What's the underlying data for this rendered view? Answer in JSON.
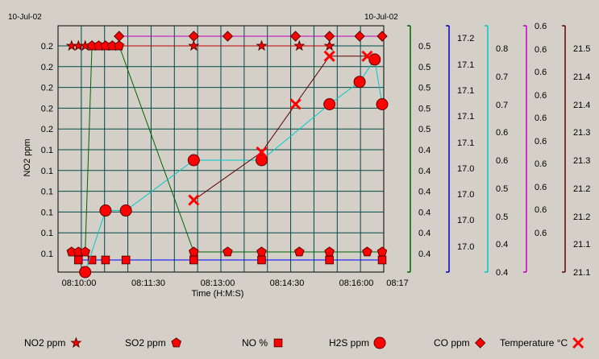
{
  "header": {
    "date_left": "10-Jul-02",
    "date_right": "10-Jul-02"
  },
  "chart_data": {
    "type": "line",
    "xlabel": "Time (H:M:S)",
    "ylabel": "NO2 ppm",
    "x_ticks": [
      "08:10:00",
      "08:11:30",
      "08:13:00",
      "08:14:30",
      "08:16:00",
      "08:17"
    ],
    "x_range_seconds": [
      0,
      432
    ],
    "left_axis_ticks": [
      "0.2",
      "0.2",
      "0.2",
      "0.2",
      "0.2",
      "0.1",
      "0.1",
      "0.1",
      "0.1",
      "0.1",
      "0.1"
    ],
    "right_axes": [
      {
        "name": "SO2 ppm",
        "color": "#006400",
        "ticks": [
          "0.5",
          "0.5",
          "0.5",
          "0.5",
          "0.5",
          "0.4",
          "0.4",
          "0.4",
          "0.4",
          "0.4",
          "0.4"
        ]
      },
      {
        "name": "NO %",
        "color": "#0000c0",
        "ticks": [
          "17.2",
          "17.1",
          "17.1",
          "17.1",
          "17.1",
          "17.0",
          "17.0",
          "17.0",
          "17.0"
        ]
      },
      {
        "name": "H2S ppm",
        "color": "#00c8c8",
        "ticks": [
          "0.8",
          "0.7",
          "0.7",
          "0.6",
          "0.6",
          "0.5",
          "0.5",
          "0.4",
          "0.4"
        ]
      },
      {
        "name": "CO ppm",
        "color": "#c000c0",
        "ticks": [
          "0.6",
          "0.6",
          "0.6",
          "0.6",
          "0.6",
          "0.6",
          "0.6",
          "0.6",
          "0.6",
          "0.6"
        ]
      },
      {
        "name": "Temperature °C",
        "color": "#600000",
        "ticks": [
          "21.5",
          "21.4",
          "21.4",
          "21.3",
          "21.3",
          "21.2",
          "21.2",
          "21.1",
          "21.1"
        ]
      }
    ],
    "series": [
      {
        "name": "NO2 ppm",
        "marker": "star",
        "line": "#c00000",
        "points": [
          [
            18,
            0.2
          ],
          [
            27,
            0.2
          ],
          [
            36,
            0.2
          ],
          [
            45,
            0.2
          ],
          [
            54,
            0.2
          ],
          [
            63,
            0.2
          ],
          [
            72,
            0.2
          ],
          [
            81,
            0.2
          ],
          [
            180,
            0.2
          ],
          [
            270,
            0.2
          ],
          [
            320,
            0.2
          ],
          [
            360,
            0.2
          ]
        ]
      },
      {
        "name": "SO2 ppm",
        "marker": "pentagon",
        "line": "#006400",
        "points": [
          [
            18,
            0.41
          ],
          [
            27,
            0.41
          ],
          [
            36,
            0.41
          ],
          [
            45,
            0.5
          ],
          [
            54,
            0.5
          ],
          [
            63,
            0.5
          ],
          [
            72,
            0.5
          ],
          [
            81,
            0.5
          ],
          [
            180,
            0.41
          ],
          [
            225,
            0.41
          ],
          [
            270,
            0.41
          ],
          [
            320,
            0.41
          ],
          [
            360,
            0.41
          ],
          [
            410,
            0.41
          ],
          [
            440,
            0.41
          ]
        ]
      },
      {
        "name": "NO %",
        "marker": "square",
        "line": "#0000ff",
        "points": [
          [
            27,
            17.0
          ],
          [
            45,
            17.0
          ],
          [
            63,
            17.0
          ],
          [
            90,
            17.0
          ],
          [
            180,
            17.0
          ],
          [
            270,
            17.0
          ],
          [
            360,
            17.0
          ],
          [
            440,
            17.0
          ]
        ]
      },
      {
        "name": "H2S ppm",
        "marker": "circle",
        "line": "#00c8c8",
        "points": [
          [
            36,
            0.4
          ],
          [
            63,
            0.51
          ],
          [
            90,
            0.51
          ],
          [
            180,
            0.6
          ],
          [
            270,
            0.6
          ],
          [
            360,
            0.7
          ],
          [
            400,
            0.74
          ],
          [
            420,
            0.78
          ],
          [
            440,
            0.7
          ]
        ]
      },
      {
        "name": "CO ppm",
        "marker": "diamond",
        "line": "#c000c0",
        "points": [
          [
            81,
            0.6
          ],
          [
            180,
            0.6
          ],
          [
            225,
            0.6
          ],
          [
            315,
            0.6
          ],
          [
            360,
            0.6
          ],
          [
            400,
            0.6
          ],
          [
            440,
            0.6
          ]
        ]
      },
      {
        "name": "Temperature °C",
        "marker": "x",
        "line": "#600000",
        "points": [
          [
            180,
            21.2
          ],
          [
            270,
            21.3
          ],
          [
            315,
            21.4
          ],
          [
            360,
            21.5
          ],
          [
            410,
            21.5
          ]
        ]
      }
    ],
    "legend": [
      {
        "label": "NO2 ppm",
        "marker": "star"
      },
      {
        "label": "SO2 ppm",
        "marker": "pentagon"
      },
      {
        "label": "NO %",
        "marker": "square"
      },
      {
        "label": "H2S ppm",
        "marker": "circle"
      },
      {
        "label": "CO ppm",
        "marker": "diamond"
      },
      {
        "label": "Temperature °C",
        "marker": "x"
      }
    ],
    "grid": true,
    "marker_color": "#ff0000"
  }
}
